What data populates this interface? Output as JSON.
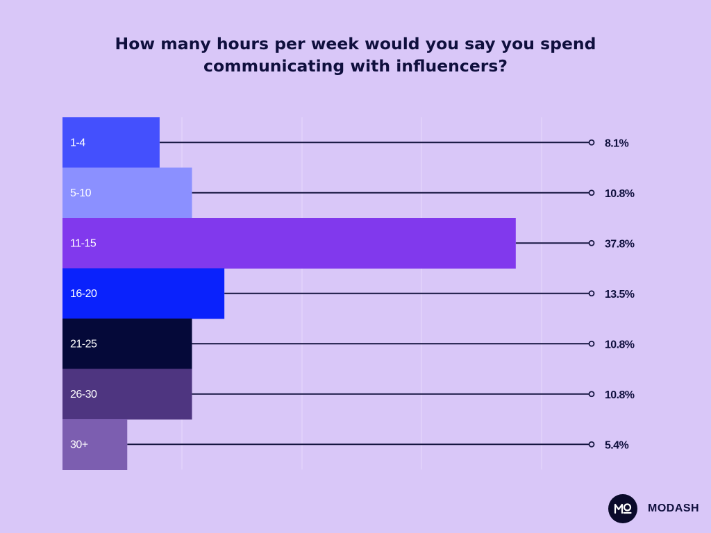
{
  "chart_data": {
    "type": "bar",
    "orientation": "horizontal",
    "title_lines": [
      "How many hours per week would you say you spend",
      "communicating with influencers?"
    ],
    "categories": [
      "1-4",
      "5-10",
      "11-15",
      "16-20",
      "21-25",
      "26-30",
      "30+"
    ],
    "values": [
      8.1,
      10.8,
      37.8,
      13.5,
      10.8,
      10.8,
      5.4
    ],
    "value_labels": [
      "8.1%",
      "10.8%",
      "37.8%",
      "13.5%",
      "10.8%",
      "10.8%",
      "5.4%"
    ],
    "bar_colors": [
      "#4450fd",
      "#8b90ff",
      "#8139ed",
      "#0a22fc",
      "#050939",
      "#4e3580",
      "#7c5eb0"
    ],
    "label_colors": [
      "#ffffff",
      "#ffffff",
      "#ffffff",
      "#ffffff",
      "#ffffff",
      "#ffffff",
      "#ffffff"
    ],
    "grid": true,
    "legend": "none"
  },
  "brand": {
    "name": "MODASH",
    "logo_text": "MO"
  },
  "colors": {
    "background": "#d9c7f8",
    "text": "#0f0f3d",
    "leader_line": "#151540",
    "gridline": "#e4d6fb"
  }
}
